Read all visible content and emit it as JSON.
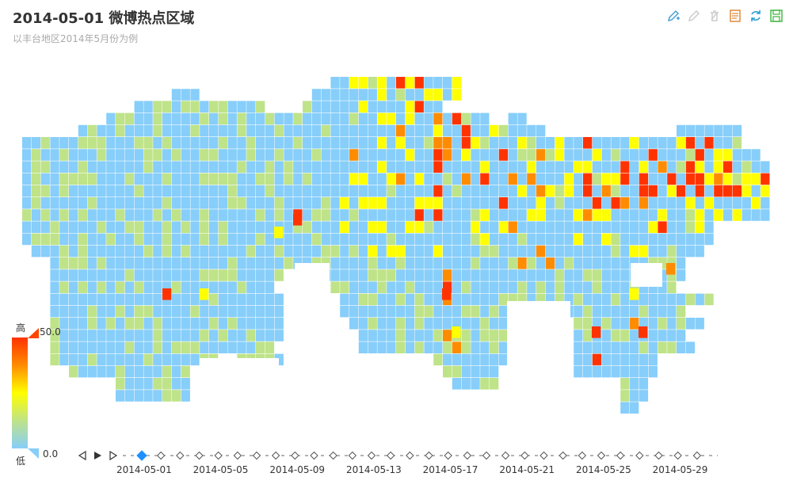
{
  "title": "2014-05-01 微博热点区域",
  "subtitle": "以丰台地区2014年5月份为例",
  "toolbox": [
    "mark-icon",
    "mark-undo-icon",
    "mark-clear-icon",
    "data-view-icon",
    "restore-icon",
    "save-image-icon"
  ],
  "visual_map": {
    "high_text": "高",
    "low_text": "低",
    "max_label": "50.0",
    "min_label": "0.0",
    "colors": [
      "#87cefa",
      "#bfe388",
      "#ffff00",
      "#ff8c00",
      "#ff3300"
    ]
  },
  "timeline": {
    "labels": [
      "2014-05-01",
      "2014-05-05",
      "2014-05-09",
      "2014-05-13",
      "2014-05-17",
      "2014-05-21",
      "2014-05-25",
      "2014-05-29"
    ],
    "active_color": "#1e90ff",
    "current": "2014-05-01"
  },
  "chart_data": {
    "type": "heatmap",
    "title": "2014-05-01 微博热点区域",
    "subtitle": "以丰台地区2014年5月份为例",
    "value_range": [
      0,
      50
    ],
    "hotspots": [
      {
        "region": "north-center",
        "value": 50
      },
      {
        "region": "east-band",
        "value": 50
      },
      {
        "region": "southwest-spot",
        "value": 45
      }
    ]
  }
}
